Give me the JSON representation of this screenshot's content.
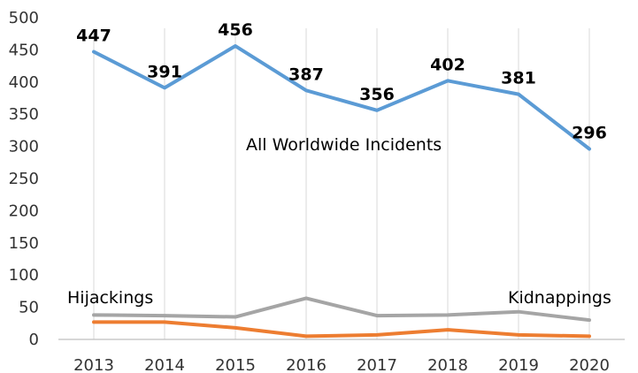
{
  "chart_data": {
    "type": "line",
    "categories": [
      "2013",
      "2014",
      "2015",
      "2016",
      "2017",
      "2018",
      "2019",
      "2020"
    ],
    "ylim": [
      0,
      500
    ],
    "yticks": [
      "0",
      "50",
      "100",
      "150",
      "200",
      "250",
      "300",
      "350",
      "400",
      "450",
      "500"
    ],
    "grid": "vertical",
    "series": [
      {
        "name": "All Worldwide Incidents",
        "color": "#5b9bd5",
        "values": [
          447,
          391,
          456,
          387,
          356,
          402,
          381,
          296
        ],
        "data_labels": [
          "447",
          "391",
          "456",
          "387",
          "356",
          "402",
          "381",
          "296"
        ]
      },
      {
        "name": "Hijackings",
        "color": "#a5a5a5",
        "values": [
          38,
          37,
          35,
          64,
          37,
          38,
          43,
          30
        ]
      },
      {
        "name": "Kidnappings",
        "color": "#ed7d31",
        "values": [
          27,
          27,
          18,
          5,
          7,
          15,
          7,
          5
        ]
      }
    ],
    "annotations": [
      "All Worldwide Incidents",
      "Hijackings",
      "Kidnappings"
    ]
  }
}
